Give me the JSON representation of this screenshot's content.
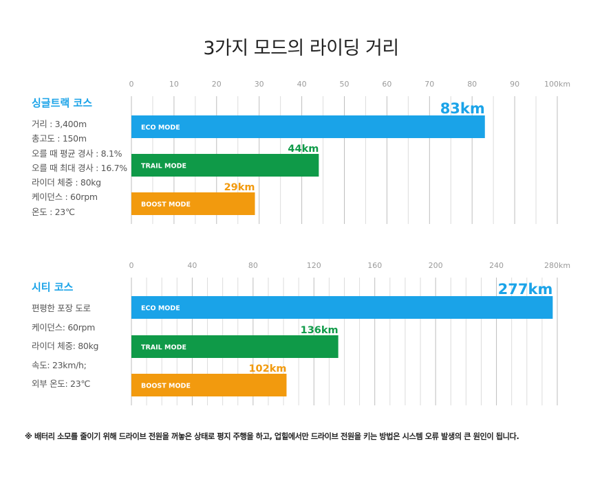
{
  "title": "3가지 모드의 라이딩 거리",
  "colors": {
    "eco": "#1aa3e8",
    "trail": "#0f9a48",
    "boost": "#f29a0e"
  },
  "chart_data": [
    {
      "type": "bar",
      "orientation": "horizontal",
      "course": "싱글트랙 코스",
      "course_color": "#1aa3e8",
      "info": [
        "거리 : 3,400m",
        "총고도 : 150m",
        "오를 때 평균 경사 : 8.1%",
        "오를 때 최대 경사 : 16.7%",
        "라이더 체중 : 80kg",
        "케이던스 : 60rpm",
        "온도 : 23℃"
      ],
      "xlim": [
        0,
        100
      ],
      "ticks": [
        "0",
        "10",
        "20",
        "30",
        "40",
        "50",
        "60",
        "70",
        "80",
        "90",
        "100km"
      ],
      "grid": true,
      "categories": [
        "ECO MODE",
        "TRAIL MODE",
        "BOOST MODE"
      ],
      "values": [
        83,
        44,
        29
      ],
      "value_labels": [
        "83km",
        "44km",
        "29km"
      ]
    },
    {
      "type": "bar",
      "orientation": "horizontal",
      "course": "시티 코스",
      "course_color": "#1aa3e8",
      "info": [
        "편평한 포장 도로",
        "케이던스: 60rpm",
        "라이더 체중: 80kg",
        "속도: 23km/h;",
        "외부 온도: 23℃"
      ],
      "xlim": [
        0,
        280
      ],
      "ticks": [
        "0",
        "40",
        "80",
        "120",
        "160",
        "200",
        "240",
        "280km"
      ],
      "grid": true,
      "categories": [
        "ECO MODE",
        "TRAIL MODE",
        "BOOST MODE"
      ],
      "values": [
        277,
        136,
        102
      ],
      "value_labels": [
        "277km",
        "136km",
        "102km"
      ]
    }
  ],
  "footnote": "※ 배터리 소모를 줄이기 위해 드라이브 전원을 꺼놓은 상태로 평지 주행을 하고, 업힐에서만 드라이브 전원을 키는 방법은 시스템 오류 발생의 큰 원인이 됩니다."
}
